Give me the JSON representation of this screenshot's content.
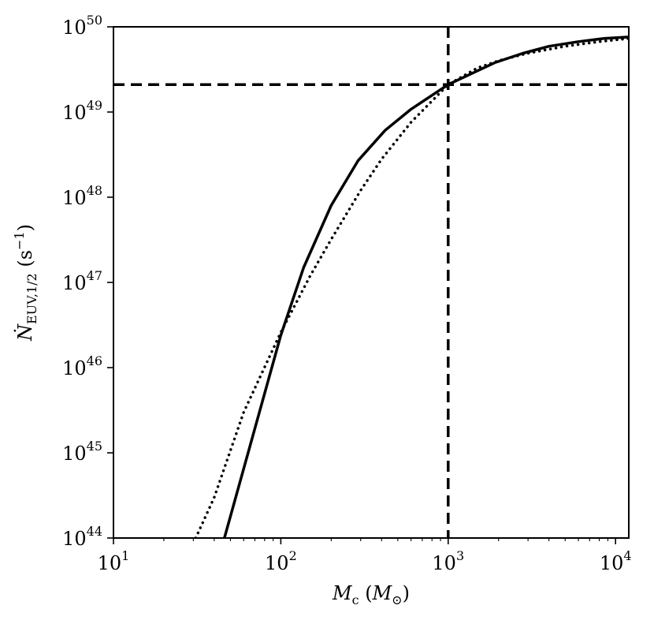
{
  "chart_data": {
    "type": "line",
    "xscale": "log",
    "yscale": "log",
    "xlim": [
      10,
      12000
    ],
    "ylim": [
      1e+44,
      1e+50
    ],
    "grid": false,
    "legend": "none",
    "xlabel": {
      "main": "M",
      "main_sub": "c",
      "paren_open": " (",
      "unit": "M",
      "unit_sub": "⊙",
      "paren_close": ")"
    },
    "ylabel": {
      "main": "Ṅ",
      "sub": "EUV,1/2",
      "unit": " (s",
      "unit_exp": "−1",
      "unit_close": ")"
    },
    "xticks": [
      {
        "value": 10,
        "base": "10",
        "exp": "1"
      },
      {
        "value": 100,
        "base": "10",
        "exp": "2"
      },
      {
        "value": 1000,
        "base": "10",
        "exp": "3"
      },
      {
        "value": 10000,
        "base": "10",
        "exp": "4"
      }
    ],
    "yticks": [
      {
        "value": 1e+44,
        "base": "10",
        "exp": "44"
      },
      {
        "value": 1e+45,
        "base": "10",
        "exp": "45"
      },
      {
        "value": 1e+46,
        "base": "10",
        "exp": "46"
      },
      {
        "value": 1e+47,
        "base": "10",
        "exp": "47"
      },
      {
        "value": 1e+48,
        "base": "10",
        "exp": "48"
      },
      {
        "value": 1e+49,
        "base": "10",
        "exp": "49"
      },
      {
        "value": 1e+50,
        "base": "10",
        "exp": "50"
      }
    ],
    "series": [
      {
        "style": "solid",
        "x": [
          46,
          100,
          137,
          200,
          290,
          420,
          600,
          1000,
          1900,
          2800,
          4000,
          6000,
          8500,
          12000
        ],
        "y": [
          1e+44,
          2.4e+46,
          1.5e+47,
          8e+47,
          2.7e+48,
          6.1e+48,
          1.08e+49,
          2.1e+49,
          3.8e+49,
          4.9e+49,
          5.9e+49,
          6.7e+49,
          7.3e+49,
          7.6e+49
        ]
      },
      {
        "style": "dotted",
        "x": [
          31,
          40,
          60,
          100,
          150,
          200,
          300,
          400,
          600,
          1000,
          1500,
          2000,
          3000,
          5000,
          8000,
          12000
        ],
        "y": [
          1e+44,
          3e+44,
          3e+45,
          2.6e+46,
          1.2e+47,
          3.2e+47,
          1.2e+48,
          2.8e+48,
          7.6e+48,
          2.1e+49,
          3.3e+49,
          4e+49,
          4.9e+49,
          5.9e+49,
          6.7e+49,
          7.3e+49
        ]
      }
    ],
    "reference_lines": [
      {
        "orientation": "vertical",
        "value": 1000,
        "style": "dashed"
      },
      {
        "orientation": "horizontal",
        "value": 2.1e+49,
        "style": "dashed"
      }
    ]
  }
}
